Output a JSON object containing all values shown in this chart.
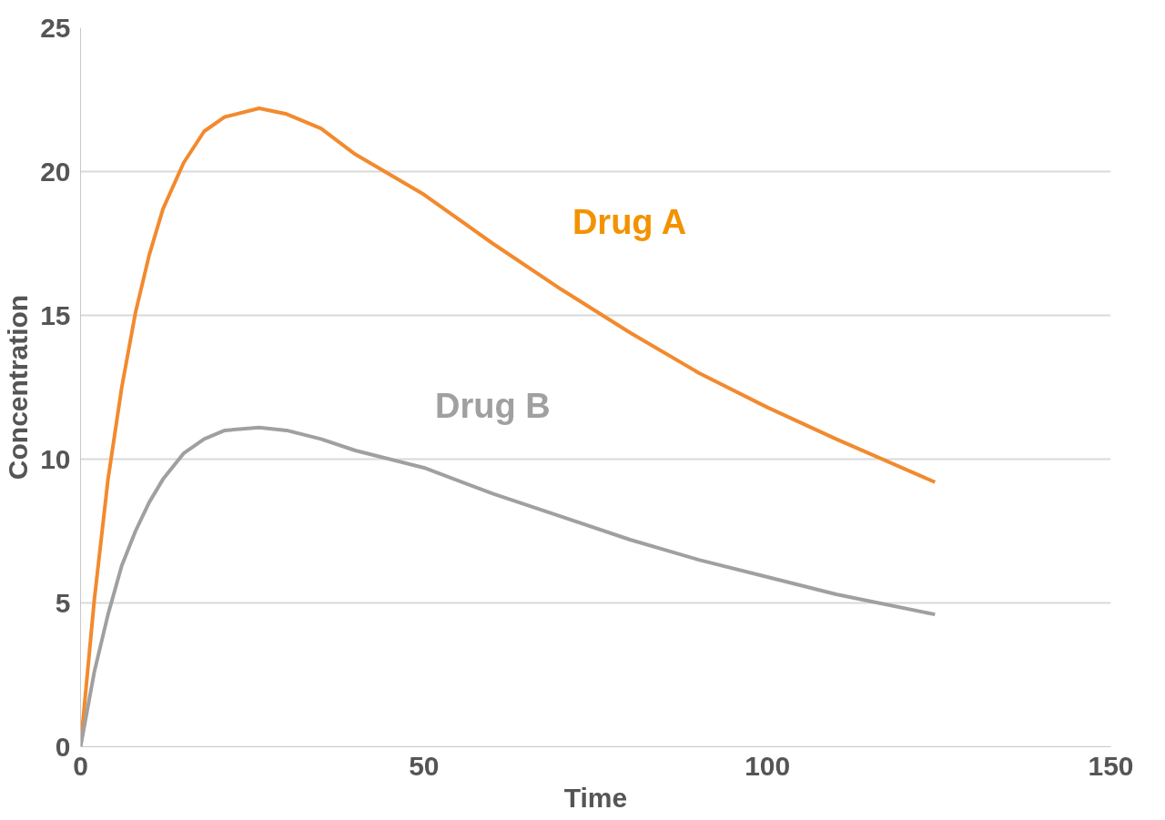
{
  "chart_data": {
    "type": "line",
    "xlabel": "Time",
    "ylabel": "Concentration",
    "xlim": [
      0,
      150
    ],
    "ylim": [
      0,
      25
    ],
    "xticks": [
      0,
      50,
      100,
      150
    ],
    "yticks": [
      0,
      5,
      10,
      15,
      20,
      25
    ],
    "grid": "y",
    "legend": false,
    "marker": "none",
    "line_style": "solid",
    "series": [
      {
        "name": "Drug A",
        "color": "#f28a2e",
        "x": [
          0,
          2,
          4,
          6,
          8,
          10,
          12,
          15,
          18,
          21,
          26,
          30,
          35,
          40,
          50,
          60,
          70,
          80,
          90,
          100,
          110,
          124.4
        ],
        "values": [
          0,
          5.1,
          9.3,
          12.5,
          15.1,
          17.1,
          18.7,
          20.3,
          21.4,
          21.9,
          22.2,
          22.0,
          21.5,
          20.6,
          19.2,
          17.5,
          15.9,
          14.4,
          13.0,
          11.8,
          10.7,
          9.2
        ]
      },
      {
        "name": "Drug B",
        "color": "#a0a0a0",
        "x": [
          0,
          2,
          4,
          6,
          8,
          10,
          12,
          15,
          18,
          21,
          26,
          30,
          35,
          40,
          50,
          60,
          70,
          80,
          90,
          100,
          110,
          124.4
        ],
        "values": [
          0,
          2.6,
          4.6,
          6.3,
          7.5,
          8.5,
          9.3,
          10.2,
          10.7,
          11.0,
          11.1,
          11.0,
          10.7,
          10.3,
          9.7,
          8.8,
          8.0,
          7.2,
          6.5,
          5.9,
          5.3,
          4.6
        ]
      }
    ]
  }
}
